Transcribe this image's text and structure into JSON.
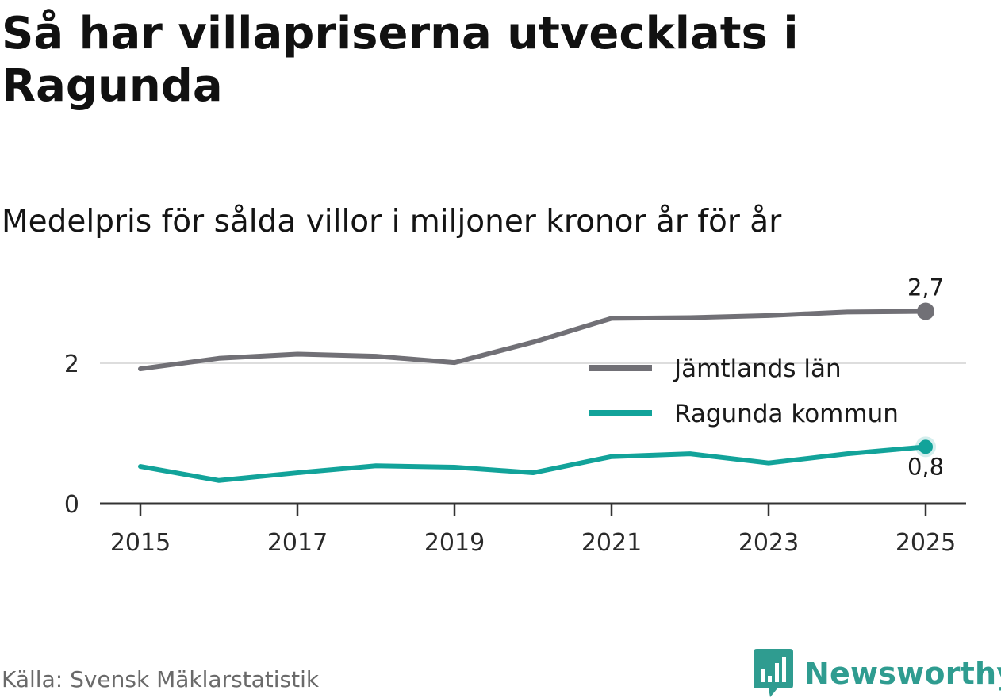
{
  "title": "Så har villapriserna utvecklats i Ragunda",
  "subtitle": "Medelpris för sålda villor i miljoner kronor år för år",
  "source": "Källa: Svensk Mäklarstatistik",
  "brand": "Newsworthy",
  "colors": {
    "jamtland": "#717076",
    "ragunda": "#12a39a",
    "brand": "#2f9c90"
  },
  "chart_data": {
    "type": "line",
    "title": "Så har villapriserna utvecklats i Ragunda",
    "subtitle": "Medelpris för sålda villor i miljoner kronor år för år",
    "xlabel": "",
    "ylabel": "",
    "x": [
      2015,
      2016,
      2017,
      2018,
      2019,
      2020,
      2021,
      2022,
      2023,
      2024,
      2025
    ],
    "xticks": [
      "2015",
      "2017",
      "2019",
      "2021",
      "2023",
      "2025"
    ],
    "yticks": [
      "0",
      "2"
    ],
    "ylim": [
      0,
      3
    ],
    "grid": true,
    "legend_position": "right",
    "series": [
      {
        "name": "Jämtlands län",
        "values": [
          1.92,
          2.07,
          2.13,
          2.1,
          2.01,
          2.3,
          2.64,
          2.65,
          2.68,
          2.73,
          2.74
        ],
        "end_label": "2,7"
      },
      {
        "name": "Ragunda kommun",
        "values": [
          0.53,
          0.33,
          0.44,
          0.54,
          0.52,
          0.44,
          0.67,
          0.71,
          0.58,
          0.71,
          0.81
        ],
        "end_label": "0,8"
      }
    ]
  }
}
